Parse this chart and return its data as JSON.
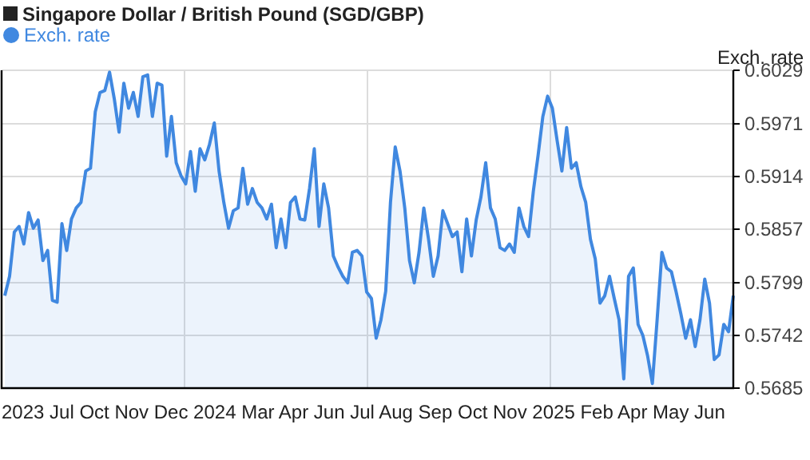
{
  "chart_data": {
    "type": "area",
    "title": "Singapore Dollar / British Pound (SGD/GBP)",
    "ylabel": "Exch. rate",
    "legend": "top left",
    "grid": true,
    "marker": "none",
    "line_style": "solid",
    "annotations": [
      "2023 Jul Oct Nov Dec 2024 Mar Apr Jun Jul Aug Sep Oct Nov 2025 Feb Apr May Jun"
    ],
    "ylim": [
      0.5685,
      0.6029
    ],
    "yticks": [
      0.5685,
      0.5742,
      0.5799,
      0.5857,
      0.5914,
      0.5971,
      0.6029
    ],
    "categories": [
      null,
      null,
      null,
      null,
      null,
      null,
      null,
      null,
      null,
      null,
      null,
      null,
      null,
      null,
      null,
      null,
      null,
      null,
      null,
      null,
      null,
      null,
      null,
      null,
      null,
      null,
      null,
      null,
      null,
      null,
      null,
      null,
      null,
      null,
      null,
      null,
      null,
      null,
      null,
      null,
      null,
      null,
      null,
      null,
      null,
      null,
      null,
      null,
      null,
      null,
      null,
      null,
      null,
      null,
      null,
      null,
      null,
      null,
      null,
      null,
      null,
      null,
      null,
      null,
      null,
      null,
      null,
      null,
      null,
      null,
      null,
      null,
      null,
      null,
      null,
      null,
      null,
      null,
      null,
      null,
      null,
      null,
      null,
      null,
      null,
      null,
      null,
      null,
      null,
      null,
      null,
      null,
      null,
      null,
      null,
      null,
      null,
      null,
      null,
      null,
      null,
      null,
      null,
      null,
      null,
      null,
      null,
      null,
      null,
      null,
      null,
      null,
      null,
      null,
      null,
      null,
      null,
      null,
      null,
      null,
      null,
      null,
      null,
      null,
      null,
      null,
      null,
      null,
      null,
      null,
      null,
      null,
      null,
      null,
      null,
      null,
      null,
      null,
      null,
      null,
      null,
      null,
      null,
      null,
      null,
      null,
      null,
      null,
      null,
      null,
      null,
      null,
      null,
      null
    ],
    "series": [
      {
        "name": "Exch. rate",
        "color": "#4088e0",
        "values": [
          0.5785,
          0.5806,
          0.5854,
          0.586,
          0.5841,
          0.5875,
          0.5858,
          0.5867,
          0.5823,
          0.5834,
          0.578,
          0.5778,
          0.5863,
          0.5834,
          0.5868,
          0.588,
          0.5886,
          0.592,
          0.5923,
          0.5984,
          0.6005,
          0.6007,
          0.6027,
          0.5998,
          0.5962,
          0.6015,
          0.5988,
          0.6005,
          0.5979,
          0.6022,
          0.6024,
          0.5979,
          0.6015,
          0.6013,
          0.5936,
          0.5979,
          0.5929,
          0.5915,
          0.5906,
          0.5941,
          0.5898,
          0.5944,
          0.5932,
          0.5949,
          0.5972,
          0.592,
          0.5886,
          0.5858,
          0.5877,
          0.588,
          0.5923,
          0.5884,
          0.5901,
          0.5886,
          0.588,
          0.5868,
          0.5884,
          0.5837,
          0.5868,
          0.5837,
          0.5886,
          0.5892,
          0.5868,
          0.5867,
          0.5901,
          0.5944,
          0.586,
          0.5906,
          0.588,
          0.5828,
          0.5816,
          0.5806,
          0.5799,
          0.5832,
          0.5834,
          0.5828,
          0.5789,
          0.5782,
          0.5739,
          0.5759,
          0.579,
          0.5886,
          0.5946,
          0.592,
          0.588,
          0.5823,
          0.5799,
          0.5832,
          0.588,
          0.5846,
          0.5806,
          0.5828,
          0.5877,
          0.5863,
          0.5849,
          0.5854,
          0.5811,
          0.5868,
          0.5828,
          0.5867,
          0.5892,
          0.5929,
          0.588,
          0.5868,
          0.5837,
          0.5834,
          0.5841,
          0.5832,
          0.588,
          0.586,
          0.5849,
          0.5898,
          0.5937,
          0.5979,
          0.6001,
          0.5988,
          0.5953,
          0.592,
          0.5967,
          0.5923,
          0.5929,
          0.5903,
          0.5886,
          0.5846,
          0.5825,
          0.5777,
          0.5785,
          0.5806,
          0.5782,
          0.5759,
          0.5695,
          0.5806,
          0.5815,
          0.5754,
          0.5742,
          0.572,
          0.569,
          0.5759,
          0.5832,
          0.5815,
          0.5811,
          0.5789,
          0.5765,
          0.5739,
          0.5759,
          0.573,
          0.5759,
          0.5803,
          0.5777,
          0.5716,
          0.5721,
          0.5754,
          0.5746,
          0.5785
        ]
      }
    ]
  }
}
